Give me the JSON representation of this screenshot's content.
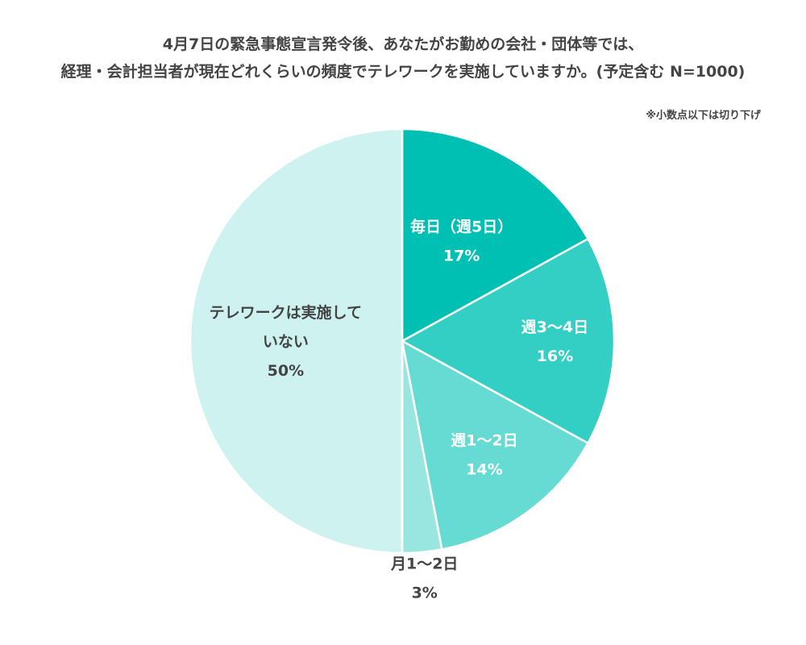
{
  "title_line1": "4月7日の緊急事態宣言発令後、あなたがお勤めの会社・団体等では、",
  "title_line2": "経理・会計担当者が現在どれくらいの頻度でテレワークを実施していますか。(予定含む N=1000)",
  "note": "※小数点以下は切り下げ",
  "chart_data": {
    "type": "pie",
    "slices": [
      {
        "label_lines": [
          "毎日（週5日）"
        ],
        "value": 17,
        "value_label": "17%",
        "color": "#00bfb3",
        "text_color": "#ffffff"
      },
      {
        "label_lines": [
          "週3〜4日"
        ],
        "value": 16,
        "value_label": "16%",
        "color": "#33cfc4",
        "text_color": "#ffffff"
      },
      {
        "label_lines": [
          "週1〜2日"
        ],
        "value": 14,
        "value_label": "14%",
        "color": "#66dbd3",
        "text_color": "#ffffff"
      },
      {
        "label_lines": [
          "月1〜2日"
        ],
        "value": 3,
        "value_label": "3%",
        "color": "#99e5e0",
        "text_color": "#444444"
      },
      {
        "label_lines": [
          "テレワークは実施して",
          "いない"
        ],
        "value": 50,
        "value_label": "50%",
        "color": "#cef2ef",
        "text_color": "#444444"
      }
    ]
  }
}
